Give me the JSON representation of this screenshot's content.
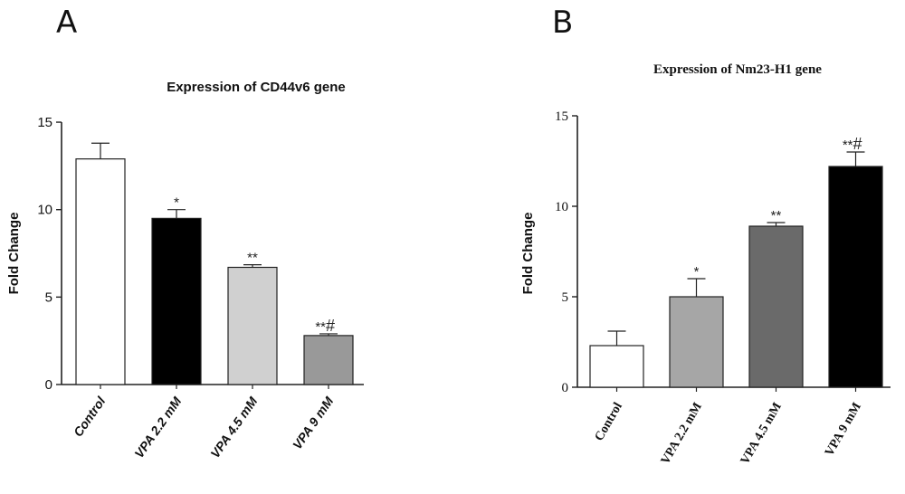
{
  "panels": [
    {
      "letter": "A"
    },
    {
      "letter": "B"
    }
  ],
  "chart_data": [
    {
      "type": "bar",
      "title": "Expression of CD44v6 gene",
      "xlabel": "",
      "ylabel": "Fold Change",
      "ylim": [
        0,
        15
      ],
      "yticks": [
        0,
        5,
        10,
        15
      ],
      "categories": [
        "Control",
        "VPA 2.2 mM",
        "VPA 4.5 mM",
        "VPA 9 mM"
      ],
      "values": [
        12.9,
        9.5,
        6.7,
        2.8
      ],
      "errors": [
        0.9,
        0.5,
        0.15,
        0.1
      ],
      "significance": [
        "",
        "*",
        "**",
        "**#"
      ],
      "colors": [
        "#ffffff",
        "#000000",
        "#d0d0d0",
        "#999999"
      ],
      "grid": false
    },
    {
      "type": "bar",
      "title": "Expression of Nm23-H1 gene",
      "xlabel": "",
      "ylabel": "Fold Change",
      "ylim": [
        0,
        15
      ],
      "yticks": [
        0,
        5,
        10,
        15
      ],
      "categories": [
        "Control",
        "VPA 2.2 mM",
        "VPA 4.5 mM",
        "VPA 9 mM"
      ],
      "values": [
        2.3,
        5.0,
        8.9,
        12.2
      ],
      "errors": [
        0.8,
        1.0,
        0.2,
        0.8
      ],
      "significance": [
        "",
        "*",
        "**",
        "**#"
      ],
      "colors": [
        "#ffffff",
        "#a6a6a6",
        "#6a6a6a",
        "#000000"
      ],
      "grid": false
    }
  ]
}
